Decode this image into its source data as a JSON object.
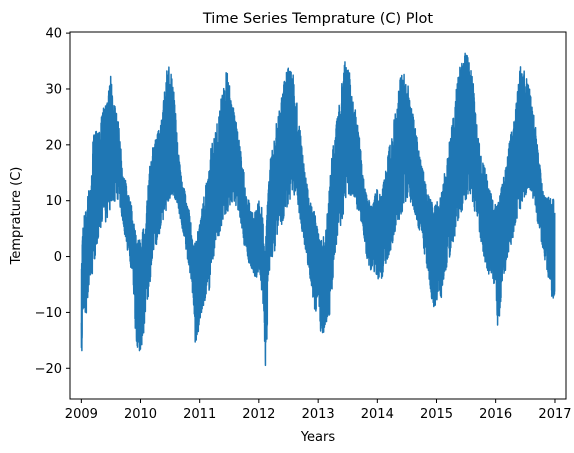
{
  "chart_data": {
    "type": "line",
    "title": "Time Series Temprature (C) Plot",
    "xlabel": "Years",
    "ylabel": "Temprature (C)",
    "xlim": [
      "2008-10-23",
      "2017-03-10"
    ],
    "ylim": [
      -25.5,
      40.2
    ],
    "x_ticks": [
      "2009",
      "2010",
      "2011",
      "2012",
      "2013",
      "2014",
      "2015",
      "2016",
      "2017"
    ],
    "y_ticks": [
      -20,
      -10,
      0,
      10,
      20,
      30,
      40
    ],
    "grid": false,
    "legend": "none",
    "series_color": "#1f77b4",
    "series": [
      {
        "x": [
          "2009-01-01",
          "2009-01-10",
          "2009-01-20",
          "2009-02-01",
          "2009-02-15",
          "2009-03-01",
          "2009-03-15",
          "2009-04-01",
          "2009-04-15",
          "2009-05-01",
          "2009-05-15",
          "2009-06-01",
          "2009-06-15",
          "2009-07-01",
          "2009-07-15",
          "2009-08-01",
          "2009-08-15",
          "2009-09-01",
          "2009-09-15",
          "2009-10-01",
          "2009-10-15",
          "2009-11-01",
          "2009-11-15",
          "2009-12-01",
          "2009-12-15",
          "2010-01-01",
          "2010-01-15",
          "2010-02-01",
          "2010-02-15",
          "2010-03-01",
          "2010-03-15",
          "2010-04-01",
          "2010-04-15",
          "2010-05-01",
          "2010-05-15",
          "2010-06-01",
          "2010-06-15",
          "2010-07-01",
          "2010-07-15",
          "2010-08-01",
          "2010-08-15",
          "2010-09-01",
          "2010-09-15",
          "2010-10-01",
          "2010-10-15",
          "2010-11-01",
          "2010-11-15",
          "2010-12-01",
          "2010-12-15",
          "2011-01-01",
          "2011-01-15",
          "2011-02-01",
          "2011-02-15",
          "2011-03-01",
          "2011-03-15",
          "2011-04-01",
          "2011-04-15",
          "2011-05-01",
          "2011-05-15",
          "2011-06-01",
          "2011-06-15",
          "2011-07-01",
          "2011-07-15",
          "2011-08-01",
          "2011-08-15",
          "2011-09-01",
          "2011-09-15",
          "2011-10-01",
          "2011-10-15",
          "2011-11-01",
          "2011-11-15",
          "2011-12-01",
          "2011-12-15",
          "2012-01-01",
          "2012-01-15",
          "2012-02-01",
          "2012-02-10",
          "2012-02-20",
          "2012-03-01",
          "2012-03-15",
          "2012-04-01",
          "2012-04-15",
          "2012-05-01",
          "2012-05-15",
          "2012-06-01",
          "2012-06-15",
          "2012-07-01",
          "2012-07-15",
          "2012-08-01",
          "2012-08-15",
          "2012-09-01",
          "2012-09-15",
          "2012-10-01",
          "2012-10-15",
          "2012-11-01",
          "2012-11-15",
          "2012-12-01",
          "2012-12-15",
          "2013-01-01",
          "2013-01-15",
          "2013-02-01",
          "2013-02-15",
          "2013-03-01",
          "2013-03-15",
          "2013-04-01",
          "2013-04-15",
          "2013-05-01",
          "2013-05-15",
          "2013-06-01",
          "2013-06-15",
          "2013-07-01",
          "2013-07-15",
          "2013-08-01",
          "2013-08-15",
          "2013-09-01",
          "2013-09-15",
          "2013-10-01",
          "2013-10-15",
          "2013-11-01",
          "2013-11-15",
          "2013-12-01",
          "2013-12-15",
          "2014-01-01",
          "2014-01-15",
          "2014-02-01",
          "2014-02-15",
          "2014-03-01",
          "2014-03-15",
          "2014-04-01",
          "2014-04-15",
          "2014-05-01",
          "2014-05-15",
          "2014-06-01",
          "2014-06-15",
          "2014-07-01",
          "2014-07-15",
          "2014-08-01",
          "2014-08-15",
          "2014-09-01",
          "2014-09-15",
          "2014-10-01",
          "2014-10-15",
          "2014-11-01",
          "2014-11-15",
          "2014-12-01",
          "2014-12-15",
          "2015-01-01",
          "2015-01-15",
          "2015-02-01",
          "2015-02-15",
          "2015-03-01",
          "2015-03-15",
          "2015-04-01",
          "2015-04-15",
          "2015-05-01",
          "2015-05-15",
          "2015-06-01",
          "2015-06-15",
          "2015-07-01",
          "2015-07-15",
          "2015-08-01",
          "2015-08-15",
          "2015-09-01",
          "2015-09-15",
          "2015-10-01",
          "2015-10-15",
          "2015-11-01",
          "2015-11-15",
          "2015-12-01",
          "2015-12-15",
          "2016-01-01",
          "2016-01-15",
          "2016-02-01",
          "2016-02-15",
          "2016-03-01",
          "2016-03-15",
          "2016-04-01",
          "2016-04-15",
          "2016-05-01",
          "2016-05-15",
          "2016-06-01",
          "2016-06-15",
          "2016-07-01",
          "2016-07-15",
          "2016-08-01",
          "2016-08-15",
          "2016-09-01",
          "2016-09-15",
          "2016-10-01",
          "2016-10-15",
          "2016-11-01",
          "2016-11-15",
          "2016-12-01",
          "2016-12-15",
          "2016-12-31"
        ],
        "min": [
          -22.8,
          -10.0,
          -9.5,
          -11.0,
          -6.0,
          -3.0,
          -3.5,
          0.0,
          3.0,
          5.0,
          5.5,
          6.0,
          7.0,
          8.5,
          9.0,
          9.5,
          10.0,
          8.0,
          6.0,
          2.5,
          0.5,
          -2.0,
          -3.0,
          -14.5,
          -17.5,
          -17.5,
          -15.0,
          -12.0,
          -8.0,
          -5.0,
          -1.0,
          0.5,
          2.5,
          4.0,
          5.5,
          7.0,
          8.0,
          10.0,
          11.0,
          10.0,
          9.5,
          7.0,
          5.0,
          2.5,
          0.0,
          -3.0,
          -6.0,
          -15.5,
          -15.5,
          -12.0,
          -10.0,
          -8.5,
          -6.0,
          -6.5,
          -2.5,
          0.0,
          2.5,
          3.0,
          5.0,
          6.5,
          7.5,
          8.0,
          9.5,
          9.5,
          8.5,
          8.0,
          5.0,
          2.0,
          1.0,
          -1.5,
          -2.0,
          -3.5,
          -4.0,
          -3.0,
          -5.0,
          -12.0,
          -21.0,
          -17.0,
          -4.0,
          -1.0,
          0.0,
          1.5,
          3.5,
          5.0,
          6.5,
          8.0,
          9.0,
          10.0,
          10.5,
          10.0,
          8.0,
          5.5,
          3.0,
          0.5,
          -2.0,
          -5.0,
          -8.0,
          -11.0,
          -6.5,
          -13.5,
          -14.0,
          -13.0,
          -11.0,
          -11.5,
          -5.0,
          0.0,
          2.5,
          4.5,
          6.0,
          8.0,
          9.0,
          10.5,
          11.0,
          10.0,
          8.0,
          6.5,
          4.5,
          2.0,
          -1.0,
          -2.5,
          -3.0,
          -3.0,
          -4.0,
          -4.5,
          -4.5,
          -2.0,
          -1.0,
          0.0,
          1.0,
          3.0,
          5.0,
          6.0,
          7.5,
          9.0,
          10.0,
          10.5,
          9.0,
          8.0,
          6.5,
          4.5,
          3.5,
          1.0,
          -2.0,
          -4.0,
          -8.0,
          -9.5,
          -8.5,
          -7.0,
          -8.5,
          -4.0,
          -2.5,
          -1.0,
          0.5,
          2.5,
          4.0,
          6.0,
          7.5,
          8.5,
          9.5,
          11.0,
          10.5,
          9.0,
          7.0,
          5.0,
          2.5,
          0.5,
          -2.0,
          -3.5,
          -4.0,
          -4.0,
          -7.0,
          -13.5,
          -9.5,
          -4.5,
          -3.0,
          0.0,
          1.5,
          3.0,
          5.0,
          6.5,
          8.0,
          9.5,
          10.5,
          11.0,
          10.5,
          9.5,
          8.0,
          6.0,
          4.0,
          1.5,
          -1.5,
          -3.0,
          -6.0,
          -8.0,
          -7.0
        ],
        "max": [
          -1.0,
          5.0,
          8.5,
          9.0,
          12.0,
          12.5,
          22.0,
          23.0,
          22.5,
          25.5,
          27.0,
          28.0,
          29.0,
          33.0,
          28.0,
          27.0,
          25.0,
          20.0,
          14.5,
          14.0,
          11.5,
          10.0,
          8.0,
          5.0,
          3.5,
          3.0,
          5.0,
          6.0,
          12.5,
          17.0,
          20.0,
          21.0,
          22.0,
          24.0,
          26.0,
          30.5,
          34.7,
          34.0,
          33.5,
          28.0,
          22.0,
          18.0,
          14.0,
          12.0,
          9.5,
          8.0,
          4.0,
          3.0,
          4.5,
          6.0,
          9.0,
          12.0,
          15.0,
          17.5,
          20.5,
          22.0,
          23.5,
          26.0,
          29.5,
          31.0,
          34.0,
          33.0,
          28.0,
          26.5,
          24.0,
          21.5,
          19.0,
          15.5,
          12.0,
          10.0,
          8.5,
          8.0,
          8.5,
          11.0,
          10.0,
          5.0,
          2.0,
          9.0,
          13.0,
          18.5,
          20.0,
          24.0,
          26.0,
          28.0,
          31.0,
          33.0,
          34.5,
          34.0,
          33.0,
          30.0,
          25.0,
          22.0,
          18.0,
          14.5,
          12.0,
          10.0,
          8.5,
          8.0,
          4.5,
          3.0,
          4.0,
          5.0,
          10.0,
          15.0,
          20.0,
          23.0,
          26.0,
          28.0,
          32.5,
          35.5,
          34.0,
          33.0,
          30.0,
          27.0,
          24.0,
          21.0,
          16.0,
          13.0,
          11.0,
          10.0,
          9.0,
          11.0,
          12.5,
          12.0,
          13.0,
          14.0,
          17.0,
          20.0,
          22.0,
          25.0,
          28.0,
          31.0,
          33.5,
          33.0,
          32.0,
          30.0,
          27.0,
          24.5,
          22.0,
          19.0,
          17.0,
          15.0,
          12.5,
          11.0,
          10.0,
          9.5,
          10.0,
          11.0,
          12.0,
          14.5,
          17.0,
          20.0,
          23.0,
          26.0,
          30.0,
          33.0,
          35.0,
          36.0,
          37.3,
          36.5,
          34.0,
          31.5,
          25.0,
          22.0,
          18.5,
          17.0,
          16.0,
          13.0,
          12.0,
          10.0,
          9.5,
          11.0,
          12.5,
          14.0,
          16.0,
          19.0,
          22.0,
          24.0,
          26.0,
          30.0,
          34.3,
          34.0,
          33.5,
          32.5,
          30.0,
          27.5,
          24.0,
          20.0,
          17.0,
          13.0,
          11.0,
          12.0,
          11.0,
          10.5,
          10.5
        ]
      }
    ]
  }
}
